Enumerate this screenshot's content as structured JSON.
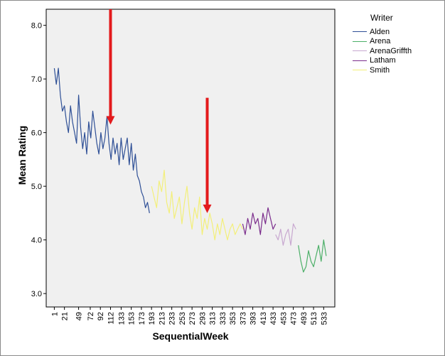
{
  "chart_data": {
    "type": "line",
    "title": "",
    "xlabel": "SequentialWeek",
    "ylabel": "Mean Rating",
    "ylim": [
      2.75,
      8.3
    ],
    "xlim": [
      -15,
      555
    ],
    "yticks": [
      "3.0",
      "4.0",
      "5.0",
      "6.0",
      "7.0",
      "8.0"
    ],
    "ytick_values": [
      3.0,
      4.0,
      5.0,
      6.0,
      7.0,
      8.0
    ],
    "xticks": [
      "1",
      "21",
      "49",
      "72",
      "92",
      "112",
      "133",
      "153",
      "173",
      "193",
      "213",
      "233",
      "253",
      "273",
      "293",
      "313",
      "333",
      "353",
      "373",
      "393",
      "413",
      "433",
      "453",
      "473",
      "493",
      "513",
      "533"
    ],
    "xtick_values": [
      1,
      21,
      49,
      72,
      92,
      112,
      133,
      153,
      173,
      193,
      213,
      233,
      253,
      273,
      293,
      313,
      333,
      353,
      373,
      393,
      413,
      433,
      453,
      473,
      493,
      513,
      533
    ],
    "grid": false,
    "legend_title": "Writer",
    "legend_position": "right",
    "background": "#f0f0f0",
    "series": [
      {
        "name": "Alden",
        "color": "#2e4f96",
        "x": [
          1,
          5,
          9,
          13,
          17,
          21,
          25,
          29,
          33,
          37,
          41,
          45,
          49,
          53,
          57,
          61,
          65,
          69,
          73,
          77,
          81,
          85,
          89,
          93,
          97,
          101,
          105,
          109,
          113,
          117,
          121,
          125,
          129,
          133,
          137,
          141,
          145,
          149,
          153,
          157,
          161,
          165,
          169,
          173,
          177,
          181,
          185,
          189
        ],
        "y": [
          7.2,
          6.9,
          7.2,
          6.7,
          6.4,
          6.5,
          6.2,
          6.0,
          6.5,
          6.2,
          6.0,
          5.8,
          6.7,
          6.1,
          5.7,
          6.0,
          5.6,
          6.2,
          5.9,
          6.4,
          6.1,
          5.8,
          5.6,
          6.0,
          5.7,
          5.9,
          6.3,
          5.8,
          5.5,
          5.9,
          5.6,
          5.8,
          5.4,
          5.9,
          5.5,
          5.7,
          5.9,
          5.4,
          5.8,
          5.3,
          5.6,
          5.2,
          5.1,
          4.9,
          4.8,
          4.6,
          4.7,
          4.5
        ]
      },
      {
        "name": "Smith",
        "color": "#f3ef7a",
        "x": [
          193,
          198,
          203,
          208,
          213,
          218,
          223,
          228,
          233,
          238,
          243,
          248,
          253,
          258,
          263,
          268,
          273,
          278,
          283,
          288,
          293,
          298,
          303,
          308,
          313,
          318,
          323,
          328,
          333,
          338,
          343,
          348,
          353,
          358,
          363,
          368,
          373
        ],
        "y": [
          5.0,
          4.8,
          4.6,
          5.1,
          4.9,
          5.3,
          4.7,
          4.5,
          4.9,
          4.4,
          4.6,
          4.8,
          4.3,
          4.7,
          5.0,
          4.5,
          4.2,
          4.6,
          4.4,
          4.8,
          4.1,
          4.4,
          4.2,
          4.5,
          4.3,
          4.0,
          4.3,
          4.1,
          4.4,
          4.2,
          4.0,
          4.2,
          4.3,
          4.1,
          4.2,
          4.3,
          4.2
        ]
      },
      {
        "name": "Latham",
        "color": "#7b2d8c",
        "x": [
          373,
          378,
          383,
          388,
          393,
          398,
          403,
          408,
          413,
          418,
          423,
          428,
          433,
          438
        ],
        "y": [
          4.3,
          4.1,
          4.4,
          4.2,
          4.5,
          4.3,
          4.4,
          4.1,
          4.5,
          4.3,
          4.6,
          4.4,
          4.2,
          4.3
        ]
      },
      {
        "name": "ArenaGriffth",
        "color": "#c8a8d0",
        "x": [
          438,
          443,
          448,
          453,
          458,
          463,
          468,
          473,
          478
        ],
        "y": [
          4.1,
          4.0,
          4.2,
          3.9,
          4.1,
          4.2,
          3.9,
          4.3,
          4.2
        ]
      },
      {
        "name": "Arena",
        "color": "#4caf68",
        "x": [
          483,
          488,
          493,
          498,
          503,
          508,
          513,
          518,
          523,
          528,
          533,
          538
        ],
        "y": [
          3.9,
          3.6,
          3.4,
          3.5,
          3.8,
          3.6,
          3.5,
          3.7,
          3.9,
          3.6,
          4.0,
          3.7
        ]
      }
    ],
    "annotations": [
      {
        "type": "arrow",
        "color": "#e31a1c",
        "x": 112,
        "y_from": 8.3,
        "y_to": 6.15
      },
      {
        "type": "arrow",
        "color": "#e31a1c",
        "x": 303,
        "y_from": 6.65,
        "y_to": 4.5
      }
    ]
  }
}
